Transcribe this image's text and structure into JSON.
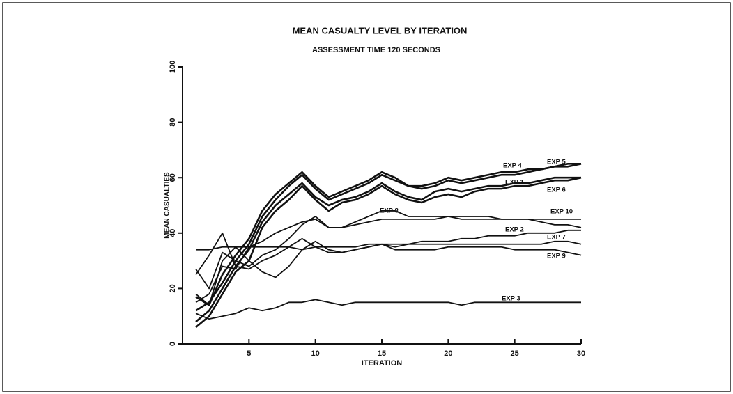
{
  "chart_data": {
    "type": "line",
    "title": "MEAN CASUALTY LEVEL BY ITERATION",
    "subtitle": "ASSESSMENT TIME 120 SECONDS",
    "x_label": "ITERATION",
    "y_label": "MEAN CASUALTIES",
    "x": [
      1,
      2,
      3,
      4,
      5,
      6,
      7,
      8,
      9,
      10,
      11,
      12,
      13,
      14,
      15,
      16,
      17,
      18,
      19,
      20,
      21,
      22,
      23,
      24,
      25,
      26,
      27,
      28,
      29,
      30
    ],
    "xlim": [
      0,
      30
    ],
    "xticks": [
      5,
      10,
      15,
      20,
      25,
      30
    ],
    "ylim": [
      0,
      100
    ],
    "yticks": [
      0,
      20,
      40,
      60,
      80,
      100
    ],
    "grid": false,
    "color": "#111111",
    "series": [
      {
        "name": "EXP 5",
        "values": [
          17,
          14,
          25,
          32,
          38,
          48,
          54,
          58,
          62,
          57,
          53,
          55,
          57,
          59,
          62,
          60,
          57,
          57,
          58,
          60,
          59,
          60,
          61,
          62,
          62,
          63,
          63,
          64,
          65,
          65
        ]
      },
      {
        "name": "EXP 4",
        "values": [
          12,
          15,
          22,
          30,
          36,
          46,
          52,
          57,
          61,
          56,
          52,
          54,
          56,
          58,
          61,
          59,
          57,
          56,
          57,
          59,
          58,
          59,
          60,
          61,
          61,
          62,
          63,
          64,
          64,
          65
        ]
      },
      {
        "name": "EXP 1",
        "values": [
          8,
          12,
          20,
          28,
          34,
          44,
          50,
          54,
          58,
          53,
          50,
          52,
          53,
          55,
          58,
          55,
          53,
          52,
          55,
          56,
          55,
          56,
          57,
          57,
          58,
          58,
          59,
          60,
          60,
          60
        ]
      },
      {
        "name": "EXP 6",
        "values": [
          6,
          10,
          18,
          26,
          30,
          42,
          48,
          52,
          57,
          52,
          48,
          51,
          52,
          54,
          57,
          54,
          52,
          51,
          53,
          54,
          53,
          55,
          56,
          56,
          57,
          57,
          58,
          59,
          59,
          60
        ]
      },
      {
        "name": "EXP 8",
        "values": [
          27,
          20,
          33,
          30,
          28,
          32,
          34,
          38,
          43,
          46,
          42,
          42,
          44,
          46,
          48,
          48,
          46,
          46,
          46,
          46,
          45,
          45,
          45,
          45,
          45,
          45,
          44,
          43,
          43,
          42
        ]
      },
      {
        "name": "EXP 10",
        "values": [
          15,
          18,
          28,
          27,
          35,
          37,
          40,
          42,
          44,
          45,
          42,
          42,
          43,
          44,
          45,
          45,
          45,
          45,
          45,
          46,
          46,
          46,
          46,
          45,
          45,
          45,
          45,
          45,
          45,
          45
        ]
      },
      {
        "name": "EXP 2",
        "values": [
          18,
          14,
          30,
          35,
          30,
          26,
          24,
          28,
          34,
          37,
          34,
          33,
          34,
          35,
          36,
          35,
          36,
          37,
          37,
          37,
          38,
          38,
          39,
          39,
          39,
          40,
          40,
          40,
          41,
          41
        ]
      },
      {
        "name": "EXP 7",
        "values": [
          34,
          34,
          35,
          35,
          35,
          35,
          35,
          35,
          34,
          35,
          35,
          35,
          35,
          36,
          36,
          36,
          36,
          36,
          36,
          36,
          36,
          36,
          36,
          36,
          36,
          36,
          36,
          37,
          37,
          36
        ]
      },
      {
        "name": "EXP 9",
        "values": [
          25,
          32,
          40,
          28,
          27,
          30,
          32,
          35,
          38,
          35,
          33,
          33,
          34,
          35,
          36,
          34,
          34,
          34,
          34,
          35,
          35,
          35,
          35,
          35,
          34,
          34,
          34,
          34,
          33,
          32
        ]
      },
      {
        "name": "EXP 3",
        "values": [
          11,
          9,
          10,
          11,
          13,
          12,
          13,
          15,
          15,
          16,
          15,
          14,
          15,
          15,
          15,
          15,
          15,
          15,
          15,
          15,
          14,
          15,
          15,
          15,
          15,
          15,
          15,
          15,
          15,
          15
        ]
      }
    ]
  }
}
